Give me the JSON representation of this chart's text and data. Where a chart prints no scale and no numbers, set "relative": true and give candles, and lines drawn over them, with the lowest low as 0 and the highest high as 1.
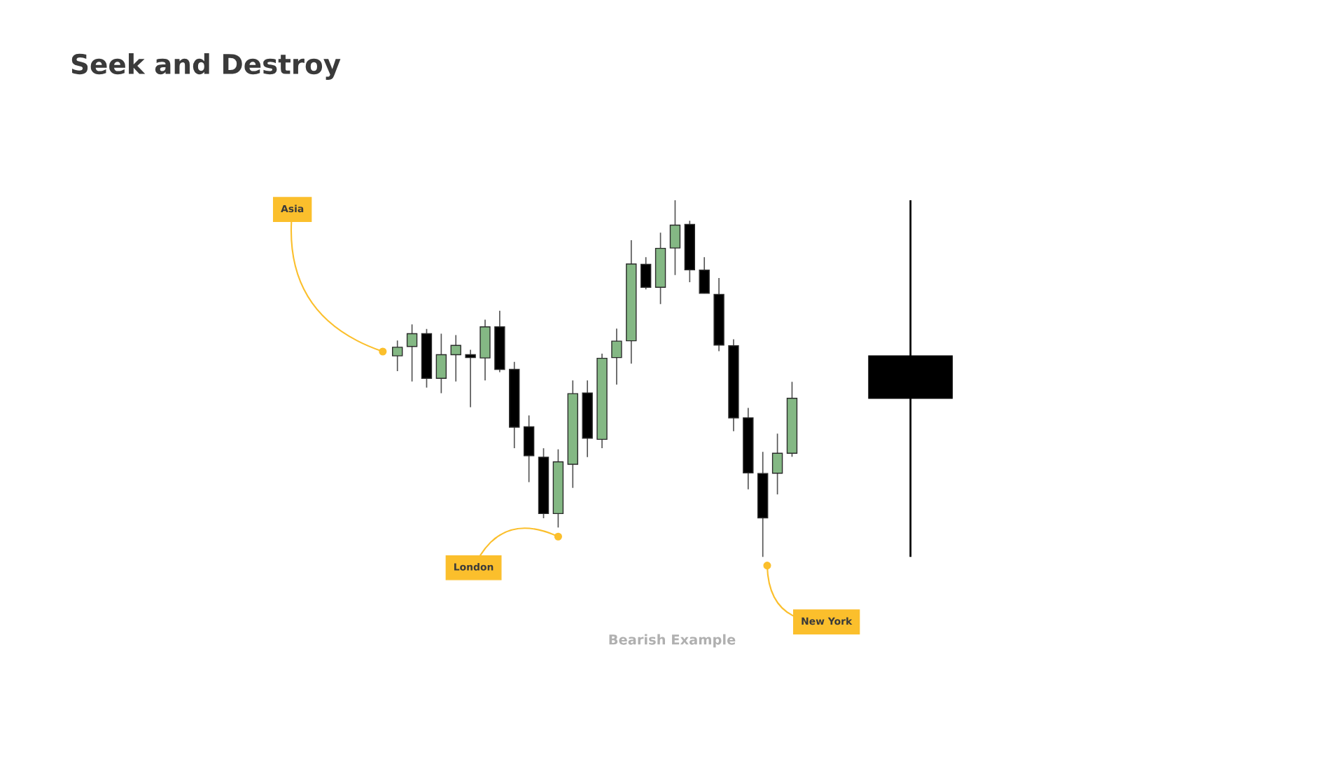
{
  "chart_data": {
    "type": "candlestick",
    "title": "Seek and Destroy",
    "relative": true,
    "tick_labels": false,
    "annotations": [
      "Asia",
      "London",
      "New York",
      "Bearish Example"
    ],
    "categories": [
      null,
      null,
      null,
      null,
      null,
      null,
      null,
      null,
      null,
      null,
      null,
      null,
      null,
      null,
      null,
      null,
      null,
      null,
      null,
      null,
      null,
      null,
      null,
      null,
      null,
      null,
      null,
      null
    ],
    "ohlc": [
      [
        0.564,
        0.607,
        0.521,
        0.588
      ],
      [
        0.59,
        0.652,
        0.492,
        0.626
      ],
      [
        0.626,
        0.639,
        0.475,
        0.501
      ],
      [
        0.501,
        0.626,
        0.459,
        0.567
      ],
      [
        0.567,
        0.622,
        0.492,
        0.593
      ],
      [
        0.567,
        0.581,
        0.42,
        0.559
      ],
      [
        0.558,
        0.665,
        0.495,
        0.645
      ],
      [
        0.645,
        0.69,
        0.518,
        0.526
      ],
      [
        0.526,
        0.547,
        0.305,
        0.364
      ],
      [
        0.365,
        0.397,
        0.21,
        0.284
      ],
      [
        0.28,
        0.305,
        0.109,
        0.122
      ],
      [
        0.122,
        0.302,
        0.083,
        0.267
      ],
      [
        0.26,
        0.495,
        0.194,
        0.458
      ],
      [
        0.46,
        0.495,
        0.28,
        0.333
      ],
      [
        0.33,
        0.57,
        0.305,
        0.557
      ],
      [
        0.559,
        0.64,
        0.483,
        0.605
      ],
      [
        0.606,
        0.888,
        0.542,
        0.821
      ],
      [
        0.82,
        0.84,
        0.75,
        0.756
      ],
      [
        0.756,
        0.909,
        0.709,
        0.865
      ],
      [
        0.866,
        1,
        0.79,
        0.93
      ],
      [
        0.932,
        0.942,
        0.77,
        0.805
      ],
      [
        0.804,
        0.84,
        0.739,
        0.739
      ],
      [
        0.736,
        0.782,
        0.577,
        0.594
      ],
      [
        0.592,
        0.61,
        0.353,
        0.39
      ],
      [
        0.39,
        0.418,
        0.19,
        0.236
      ],
      [
        0.234,
        0.295,
        0,
        0.11
      ],
      [
        0.235,
        0.346,
        0.176,
        0.291
      ],
      [
        0.291,
        0.491,
        0.281,
        0.445
      ]
    ],
    "colors": [
      "#84b884",
      "#84b884",
      "#000000",
      "#84b884",
      "#84b884",
      "#000000",
      "#84b884",
      "#000000",
      "#000000",
      "#000000",
      "#000000",
      "#84b884",
      "#84b884",
      "#000000",
      "#84b884",
      "#84b884",
      "#84b884",
      "#000000",
      "#84b884",
      "#84b884",
      "#000000",
      "#000000",
      "#000000",
      "#000000",
      "#000000",
      "#000000",
      "#84b884",
      "#84b884"
    ]
  }
}
